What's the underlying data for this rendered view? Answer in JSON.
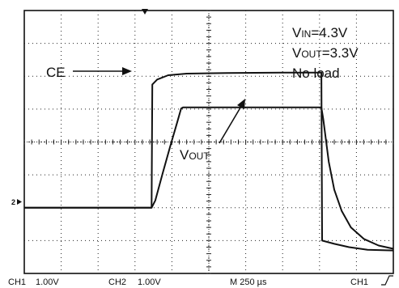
{
  "chart_data": {
    "type": "line",
    "title": "",
    "xlabel": "",
    "ylabel": "",
    "time_per_div_us": 250,
    "divisions": {
      "x": 10,
      "y": 8
    },
    "grid": true,
    "series": [
      {
        "name": "CE",
        "channel": "CH1",
        "color": "#111111",
        "points": [
          [
            0.0,
            2.0
          ],
          [
            3.45,
            2.0
          ],
          [
            3.47,
            5.75
          ],
          [
            3.6,
            5.9
          ],
          [
            3.9,
            6.03
          ],
          [
            4.4,
            6.08
          ],
          [
            5.5,
            6.1
          ],
          [
            7.0,
            6.11
          ],
          [
            8.05,
            6.11
          ],
          [
            8.07,
            1.0
          ],
          [
            8.4,
            0.9
          ],
          [
            8.8,
            0.8
          ],
          [
            9.3,
            0.72
          ],
          [
            10.0,
            0.7
          ]
        ]
      },
      {
        "name": "VOUT",
        "channel": "CH2",
        "color": "#111111",
        "points": [
          [
            0.0,
            2.0
          ],
          [
            3.45,
            2.0
          ],
          [
            3.55,
            2.22
          ],
          [
            3.75,
            3.05
          ],
          [
            3.95,
            3.85
          ],
          [
            4.15,
            4.62
          ],
          [
            4.25,
            5.02
          ],
          [
            4.3,
            5.05
          ],
          [
            5.5,
            5.05
          ],
          [
            7.0,
            5.05
          ],
          [
            8.05,
            5.05
          ],
          [
            8.1,
            4.7
          ],
          [
            8.25,
            3.4
          ],
          [
            8.4,
            2.55
          ],
          [
            8.6,
            1.9
          ],
          [
            8.85,
            1.4
          ],
          [
            9.2,
            1.05
          ],
          [
            9.6,
            0.85
          ],
          [
            10.0,
            0.75
          ]
        ]
      }
    ],
    "annotations": {
      "ce_label": "CE",
      "vout_label_main": "V",
      "vout_label_sub": "OUT",
      "vin_main": "V",
      "vin_sub": "IN",
      "vin_value": "=4.3V",
      "vout_main": "V",
      "vout_sub": "OUT",
      "vout_value": "=3.3V",
      "load": "No load"
    },
    "ground_marker": "2"
  },
  "status_bar": {
    "ch1_label": "CH1",
    "ch1_scale": "1.00V",
    "ch2_label": "CH2",
    "ch2_scale": "1.00V",
    "timebase": "M 250 µs",
    "trigger_source": "CH1",
    "trigger_slope": "rising-edge-icon"
  }
}
